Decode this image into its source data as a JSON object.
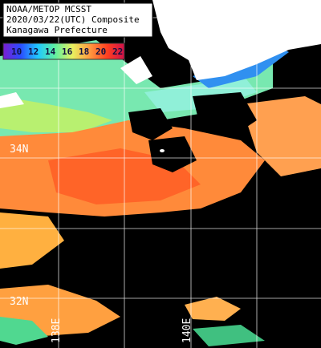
{
  "title": [
    "NOAA/METOP MCSST",
    "2020/03/22(UTC) Composite",
    "Kanagawa Prefecture"
  ],
  "colorbar": {
    "labels": [
      10,
      12,
      14,
      16,
      18,
      20,
      22
    ],
    "colors": [
      "#7a1fd0",
      "#2a4cff",
      "#20c8ff",
      "#60f0a0",
      "#e8f060",
      "#ff9a40",
      "#ff4020",
      "#d0104a"
    ]
  },
  "grid": {
    "lat_labels": [
      "34N",
      "32N"
    ],
    "lon_labels": [
      "138E",
      "140E"
    ]
  }
}
